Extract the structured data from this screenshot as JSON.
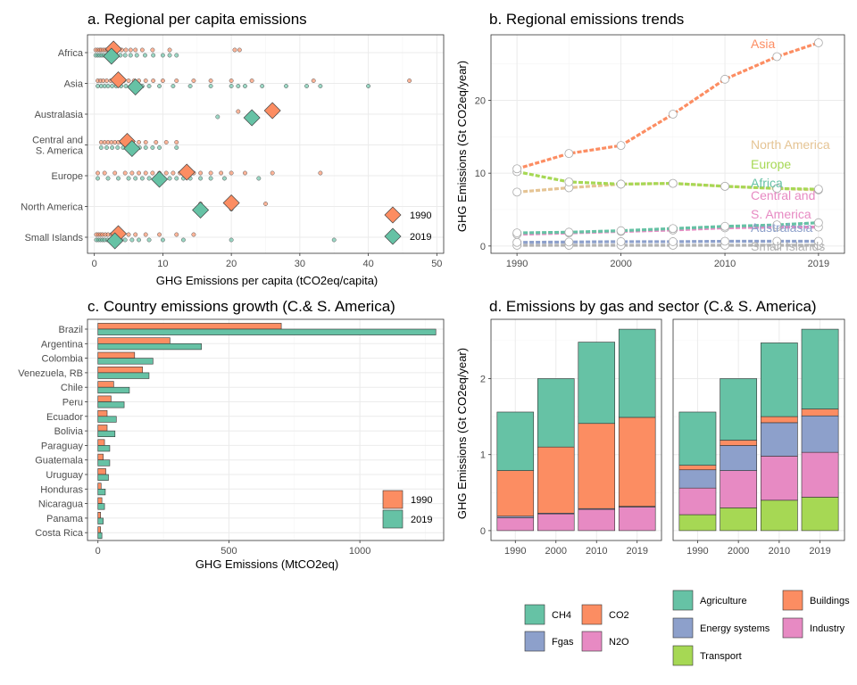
{
  "colors": {
    "orange": "#fc8d62",
    "teal": "#66c2a5",
    "blue": "#8da0cb",
    "pink": "#e78ac3",
    "green": "#a6d854",
    "tan": "#e5c494",
    "grey": "#b3b3b3"
  },
  "panel_a": {
    "title": "a. Regional per capita emissions",
    "xlabel": "GHG Emissions per capita (tCO2eq/capita)",
    "xticks": [
      "0",
      "10",
      "20",
      "30",
      "40",
      "50"
    ],
    "legend": [
      "1990",
      "2019"
    ]
  },
  "panel_b": {
    "title": "b. Regional emissions trends",
    "ylabel": "GHG Emissions (Gt CO2eq/year)",
    "xticks": [
      "1990",
      "2000",
      "2010",
      "2019"
    ],
    "yticks": [
      "0",
      "10",
      "20"
    ]
  },
  "panel_c": {
    "title": "c. Country emissions growth (C.& S. America)",
    "xlabel": "GHG Emissions (MtCO2eq)",
    "xticks": [
      "0",
      "500",
      "1000"
    ],
    "legend": [
      "1990",
      "2019"
    ]
  },
  "panel_d": {
    "title": "d. Emissions by gas and sector (C.& S. America)",
    "ylabel": "GHG Emissions (Gt CO2eq/year)",
    "xticks": [
      "1990",
      "2000",
      "2010",
      "2019"
    ],
    "yticks": [
      "0",
      "1",
      "2"
    ],
    "legend_gas": [
      "CH4",
      "CO2",
      "Fgas",
      "N2O"
    ],
    "legend_sector": [
      "Agriculture",
      "Buildings",
      "Energy systems",
      "Industry",
      "Transport"
    ]
  },
  "chart_data": [
    {
      "type": "scatter",
      "panel": "a",
      "title": "a. Regional per capita emissions",
      "xlabel": "GHG Emissions per capita (tCO2eq/capita)",
      "xlim": [
        -1,
        51
      ],
      "categories": [
        "Africa",
        "Asia",
        "Australasia",
        "Central and\nS. America",
        "Europe",
        "North America",
        "Small Islands"
      ],
      "series": [
        {
          "name": "1990",
          "median": [
            2.8,
            3.5,
            26.0,
            4.8,
            13.5,
            20.0,
            3.5
          ],
          "points": [
            [
              0.2,
              0.5,
              0.8,
              1.0,
              1.3,
              1.6,
              1.9,
              2.2,
              2.6,
              3.0,
              3.4,
              4.0,
              4.6,
              5.3,
              6.0,
              7.0,
              8.5,
              11.0,
              20.5,
              21.2
            ],
            [
              0.5,
              0.9,
              1.3,
              1.8,
              2.4,
              3.0,
              3.6,
              4.3,
              5.0,
              5.8,
              6.5,
              7.5,
              8.6,
              10.0,
              12.0,
              14.5,
              17.0,
              20.0,
              23.0,
              32.0,
              46.0
            ],
            [
              21.0,
              26.0
            ],
            [
              1.0,
              1.5,
              2.0,
              2.5,
              3.0,
              3.5,
              4.0,
              4.5,
              5.0,
              5.5,
              6.5,
              7.5,
              9.0,
              10.5,
              12.0
            ],
            [
              0.5,
              1.5,
              3.0,
              4.5,
              5.5,
              6.5,
              7.5,
              8.5,
              9.5,
              10.5,
              11.5,
              12.5,
              13.5,
              14.5,
              15.5,
              17.0,
              18.5,
              20.0,
              22.0,
              26.0,
              33.0
            ],
            [
              15.5,
              20.0,
              25.0
            ],
            [
              0.3,
              0.6,
              0.9,
              1.2,
              1.6,
              2.0,
              2.5,
              3.0,
              3.5,
              4.0,
              5.0,
              6.0,
              7.5,
              9.5,
              12.0,
              14.5
            ]
          ]
        },
        {
          "name": "2019",
          "median": [
            2.5,
            6.0,
            23.0,
            5.5,
            9.5,
            15.5,
            3.0
          ],
          "points": [
            [
              0.2,
              0.5,
              0.8,
              1.1,
              1.4,
              1.8,
              2.2,
              2.7,
              3.2,
              3.8,
              4.5,
              5.3,
              6.2,
              7.4,
              8.6,
              10.0,
              11.0,
              12.0
            ],
            [
              0.5,
              1.0,
              1.5,
              2.0,
              2.6,
              3.2,
              3.9,
              4.6,
              5.4,
              6.2,
              7.0,
              8.0,
              9.5,
              11.5,
              14.0,
              17.0,
              20.0,
              21.0,
              22.0,
              24.5,
              28.0,
              31.0,
              33.0,
              40.0
            ],
            [
              18.0,
              23.0
            ],
            [
              1.0,
              1.8,
              2.6,
              3.4,
              4.2,
              5.0,
              5.8,
              6.6,
              7.5,
              8.5,
              9.5,
              12.0
            ],
            [
              0.5,
              2.0,
              3.5,
              5.0,
              6.0,
              7.0,
              8.0,
              9.0,
              10.0,
              11.0,
              12.0,
              13.0,
              14.0,
              15.5,
              17.0,
              19.0,
              24.0
            ],
            [
              15.5,
              20.0
            ],
            [
              0.3,
              0.6,
              0.9,
              1.2,
              1.5,
              1.9,
              2.3,
              2.8,
              3.3,
              3.9,
              4.5,
              5.5,
              6.5,
              8.0,
              10.0,
              13.0,
              20.0,
              35.0
            ]
          ]
        }
      ],
      "legend_position": "bottom-right"
    },
    {
      "type": "line",
      "panel": "b",
      "title": "b. Regional emissions trends",
      "ylabel": "GHG Emissions (Gt CO2eq/year)",
      "x": [
        1990,
        1995,
        2000,
        2005,
        2010,
        2015,
        2019
      ],
      "xlim": [
        1987.5,
        2021.5
      ],
      "ylim": [
        -1.0,
        29.0
      ],
      "series": [
        {
          "name": "Asia",
          "values": [
            10.6,
            12.7,
            13.8,
            18.1,
            22.9,
            26.0,
            27.9
          ]
        },
        {
          "name": "North America",
          "values": [
            7.4,
            8.0,
            8.5,
            8.6,
            8.2,
            7.9,
            7.7
          ]
        },
        {
          "name": "Europe",
          "values": [
            10.2,
            8.8,
            8.5,
            8.6,
            8.2,
            7.9,
            7.8
          ]
        },
        {
          "name": "Africa",
          "values": [
            1.8,
            1.9,
            2.1,
            2.4,
            2.7,
            2.9,
            3.2
          ]
        },
        {
          "name": "Central and\nS. America",
          "values": [
            1.6,
            1.8,
            2.0,
            2.2,
            2.5,
            2.6,
            2.6
          ]
        },
        {
          "name": "Australasia",
          "values": [
            0.5,
            0.55,
            0.6,
            0.6,
            0.65,
            0.65,
            0.65
          ]
        },
        {
          "name": "Small Islands",
          "values": [
            0.1,
            0.1,
            0.1,
            0.1,
            0.1,
            0.1,
            0.1
          ]
        }
      ],
      "labels": [
        "Asia",
        "North America",
        "Europe",
        "Africa",
        "Central and",
        "S. America",
        "Australasia",
        "Small Islands"
      ]
    },
    {
      "type": "bar",
      "panel": "c",
      "title": "c. Country emissions growth (C.& S. America)",
      "xlabel": "GHG Emissions (MtCO2eq)",
      "xlim": [
        -40,
        1320
      ],
      "categories": [
        "Brazil",
        "Argentina",
        "Colombia",
        "Venezuela, RB",
        "Chile",
        "Peru",
        "Ecuador",
        "Bolivia",
        "Paraguay",
        "Guatemala",
        "Uruguay",
        "Honduras",
        "Nicaragua",
        "Panama",
        "Costa Rica"
      ],
      "series": [
        {
          "name": "1990",
          "values": [
            700,
            275,
            140,
            170,
            60,
            50,
            35,
            35,
            25,
            20,
            30,
            12,
            15,
            10,
            10
          ]
        },
        {
          "name": "2019",
          "values": [
            1290,
            395,
            210,
            195,
            120,
            100,
            70,
            65,
            45,
            45,
            40,
            28,
            25,
            20,
            15
          ]
        }
      ],
      "legend_position": "bottom-right"
    },
    {
      "type": "bar",
      "panel": "d-gas",
      "stacked": true,
      "title": "d. Emissions by gas and sector (C.& S. America)",
      "ylabel": "GHG Emissions (Gt CO2eq/year)",
      "categories": [
        "1990",
        "2000",
        "2010",
        "2019"
      ],
      "ylim": [
        -0.13,
        2.78
      ],
      "series": [
        {
          "name": "N2O",
          "values": [
            0.17,
            0.22,
            0.28,
            0.31
          ]
        },
        {
          "name": "Fgas",
          "values": [
            0.02,
            0.01,
            0.01,
            0.01
          ]
        },
        {
          "name": "CO2",
          "values": [
            0.6,
            0.87,
            1.12,
            1.17
          ]
        },
        {
          "name": "CH4",
          "values": [
            0.77,
            0.9,
            1.07,
            1.16
          ]
        }
      ]
    },
    {
      "type": "bar",
      "panel": "d-sector",
      "stacked": true,
      "categories": [
        "1990",
        "2000",
        "2010",
        "2019"
      ],
      "ylim": [
        -0.13,
        2.78
      ],
      "series": [
        {
          "name": "Transport",
          "values": [
            0.21,
            0.3,
            0.4,
            0.44
          ]
        },
        {
          "name": "Industry",
          "values": [
            0.35,
            0.49,
            0.58,
            0.59
          ]
        },
        {
          "name": "Energy systems",
          "values": [
            0.24,
            0.33,
            0.44,
            0.48
          ]
        },
        {
          "name": "Buildings",
          "values": [
            0.06,
            0.07,
            0.08,
            0.09
          ]
        },
        {
          "name": "Agriculture",
          "values": [
            0.7,
            0.81,
            0.97,
            1.05
          ]
        }
      ]
    }
  ]
}
